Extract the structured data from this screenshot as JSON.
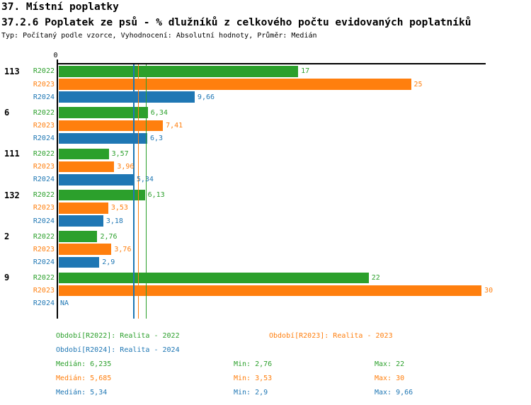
{
  "header": {
    "title": "37. Místní poplatky",
    "subtitle": "37.2.6 Poplatek ze psů - % dlužníků z celkového počtu evidovaných poplatníků",
    "meta": "Typ: Počítaný podle vzorce, Vyhodnocení: Absolutní hodnoty, Průměr: Medián"
  },
  "chart_data": {
    "type": "bar",
    "orientation": "horizontal",
    "value_axis": {
      "min": 0,
      "zero_label": "0",
      "drawn_max": 30.3,
      "grid": false
    },
    "series": [
      {
        "id": "R2022",
        "label": "R2022",
        "color": "#2ca02c"
      },
      {
        "id": "R2023",
        "label": "R2023",
        "color": "#ff7f0e"
      },
      {
        "id": "R2024",
        "label": "R2024",
        "color": "#1f77b4"
      }
    ],
    "groups": [
      {
        "label": "113",
        "values": [
          17,
          25,
          9.66
        ],
        "value_labels": [
          "17",
          "25",
          "9,66"
        ]
      },
      {
        "label": "6",
        "values": [
          6.34,
          7.41,
          6.3
        ],
        "value_labels": [
          "6,34",
          "7,41",
          "6,3"
        ]
      },
      {
        "label": "111",
        "values": [
          3.57,
          3.96,
          5.34
        ],
        "value_labels": [
          "3,57",
          "3,96",
          "5,34"
        ]
      },
      {
        "label": "132",
        "values": [
          6.13,
          3.53,
          3.18
        ],
        "value_labels": [
          "6,13",
          "3,53",
          "3,18"
        ]
      },
      {
        "label": "2",
        "values": [
          2.76,
          3.76,
          2.9
        ],
        "value_labels": [
          "2,76",
          "3,76",
          "2,9"
        ]
      },
      {
        "label": "9",
        "values": [
          22,
          30,
          null
        ],
        "value_labels": [
          "22",
          "30",
          "NA"
        ]
      }
    ],
    "median_lines": [
      {
        "series": "R2024",
        "value": 5.34
      },
      {
        "series": "R2023",
        "value": 5.685
      },
      {
        "series": "R2022",
        "value": 6.235
      }
    ],
    "legend_position": "bottom"
  },
  "legend": {
    "periods": [
      {
        "series": "R2022",
        "text": "Období[R2022]: Realita - 2022",
        "row": 0,
        "col": 0
      },
      {
        "series": "R2023",
        "text": "Období[R2023]: Realita - 2023",
        "row": 0,
        "col": 1
      },
      {
        "series": "R2024",
        "text": "Období[R2024]: Realita - 2024",
        "row": 1,
        "col": 0
      }
    ],
    "stats": [
      {
        "series": "R2022",
        "median": "Medián: 6,235",
        "min": "Min: 2,76",
        "max": "Max: 22"
      },
      {
        "series": "R2023",
        "median": "Medián: 5,685",
        "min": "Min: 3,53",
        "max": "Max: 30"
      },
      {
        "series": "R2024",
        "median": "Medián: 5,34",
        "min": "Min: 2,9",
        "max": "Max: 9,66"
      }
    ]
  }
}
